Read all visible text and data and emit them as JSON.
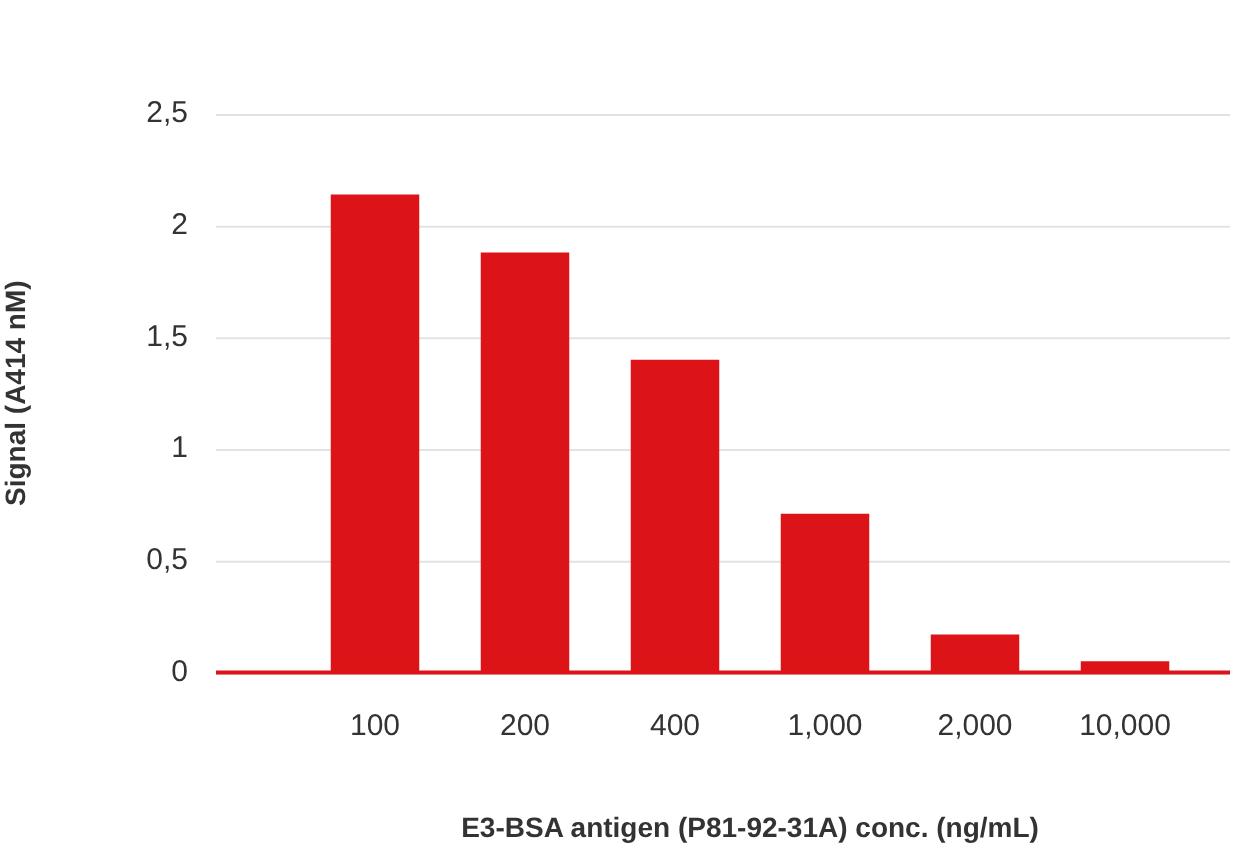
{
  "chart_data": {
    "type": "bar",
    "xlabel": "E3-BSA antigen (P81-92-31A) conc. (ng/mL)",
    "ylabel": "Signal (A414 nM)",
    "categories": [
      "100",
      "200",
      "400",
      "1,000",
      "2,000",
      "10,000"
    ],
    "values": [
      2.14,
      1.88,
      1.4,
      0.71,
      0.17,
      0.05
    ],
    "color": "#dc1417",
    "ylim": [
      0,
      2.5
    ],
    "yticks": [
      {
        "value": 0,
        "label": "0"
      },
      {
        "value": 0.5,
        "label": "0,5"
      },
      {
        "value": 1,
        "label": "1"
      },
      {
        "value": 1.5,
        "label": "1,5"
      },
      {
        "value": 2,
        "label": "2"
      },
      {
        "value": 2.5,
        "label": "2,5"
      }
    ],
    "grid": "y",
    "legend": false
  }
}
